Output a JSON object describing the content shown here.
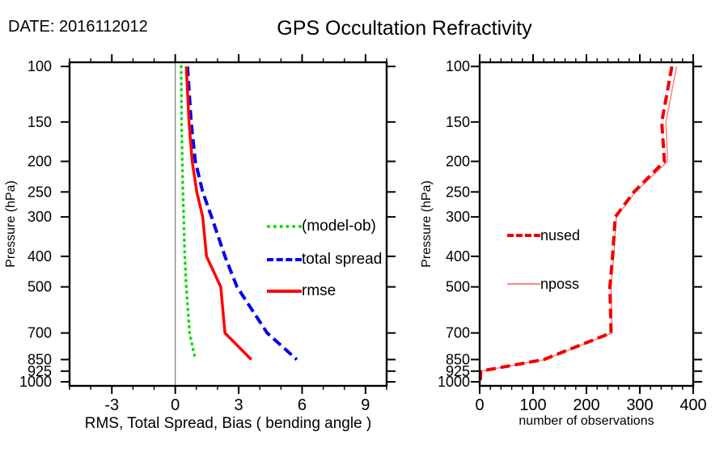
{
  "header": {
    "date_label": "DATE: 2016112012",
    "title": "GPS Occultation Refractivity"
  },
  "chart_data": [
    {
      "type": "line",
      "panel": "left",
      "title": "",
      "xlabel": "RMS, Total Spread, Bias ( bending angle )",
      "ylabel": "Pressure (hPa)",
      "x_ticks": [
        -3,
        0,
        3,
        6,
        9
      ],
      "x_minor_step": 1,
      "xlim": [
        -5,
        10
      ],
      "y_scale": "log",
      "y_axis_inverted_depth": true,
      "ylim": [
        97,
        1030
      ],
      "y_ticks": [
        100,
        150,
        200,
        250,
        300,
        400,
        500,
        700,
        850,
        925,
        1000
      ],
      "zero_line": true,
      "grid": false,
      "pressures_hpa": [
        100,
        150,
        200,
        250,
        300,
        400,
        500,
        700,
        850
      ],
      "series": [
        {
          "name": "(model-ob)",
          "color": "#00dd00",
          "style": "dotted",
          "width": 3.5,
          "values": [
            0.28,
            0.3,
            0.33,
            0.36,
            0.4,
            0.45,
            0.52,
            0.68,
            0.95
          ]
        },
        {
          "name": "total spread",
          "color": "#0000ee",
          "style": "dashed",
          "width": 4,
          "values": [
            0.58,
            0.75,
            0.95,
            1.3,
            1.72,
            2.35,
            2.92,
            4.35,
            5.75
          ]
        },
        {
          "name": "rmse",
          "color": "#ff0000",
          "style": "solid",
          "width": 3.5,
          "values": [
            0.52,
            0.65,
            0.8,
            1.02,
            1.3,
            1.48,
            2.15,
            2.35,
            3.6
          ]
        }
      ],
      "legend": {
        "position": "inside-right",
        "items": [
          "(model-ob)",
          "total spread",
          "rmse"
        ]
      }
    },
    {
      "type": "line",
      "panel": "right",
      "title": "",
      "xlabel": "number of observations",
      "ylabel": "Pressure (hPa)",
      "x_ticks": [
        0,
        100,
        200,
        300,
        400
      ],
      "x_minor_step": 20,
      "xlim": [
        0,
        400
      ],
      "y_scale": "log",
      "y_axis_inverted_depth": true,
      "ylim": [
        97,
        1030
      ],
      "y_ticks": [
        100,
        150,
        200,
        250,
        300,
        400,
        500,
        700,
        850,
        925,
        1000
      ],
      "zero_line": false,
      "grid": false,
      "pressures_hpa": [
        100,
        150,
        200,
        250,
        300,
        400,
        500,
        700,
        850,
        925,
        1000
      ],
      "series": [
        {
          "name": "nposs",
          "color": "#ff8080",
          "style": "solid",
          "width": 1.5,
          "values": [
            369,
            349,
            352,
            292,
            256,
            251,
            246,
            248,
            122,
            3,
            1
          ]
        },
        {
          "name": "nused",
          "color": "#ee0000",
          "style": "dashed",
          "width": 4,
          "values": [
            360,
            341,
            346,
            289,
            254,
            249,
            244,
            246,
            120,
            2,
            1
          ]
        }
      ],
      "legend": {
        "position": "inside-left",
        "items": [
          "nused",
          "nposs"
        ]
      }
    }
  ]
}
